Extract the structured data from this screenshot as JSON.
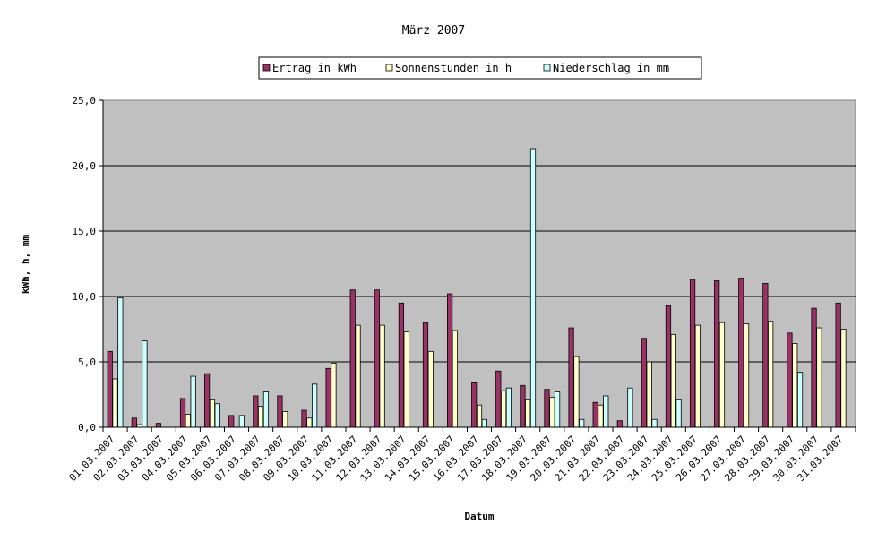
{
  "chart_data": {
    "type": "bar",
    "title": "März 2007",
    "xlabel": "Datum",
    "ylabel": "kWh, h, mm",
    "ylim": [
      0,
      25
    ],
    "yticks": [
      "0,0",
      "5,0",
      "10,0",
      "15,0",
      "20,0",
      "25,0"
    ],
    "grid": true,
    "legend_position": "top",
    "categories": [
      "01.03.2007",
      "02.03.2007",
      "03.03.2007",
      "04.03.2007",
      "05.03.2007",
      "06.03.2007",
      "07.03.2007",
      "08.03.2007",
      "09.03.2007",
      "10.03.2007",
      "11.03.2007",
      "12.03.2007",
      "13.03.2007",
      "14.03.2007",
      "15.03.2007",
      "16.03.2007",
      "17.03.2007",
      "18.03.2007",
      "19.03.2007",
      "20.03.2007",
      "21.03.2007",
      "22.03.2007",
      "23.03.2007",
      "24.03.2007",
      "25.03.2007",
      "26.03.2007",
      "27.03.2007",
      "28.03.2007",
      "29.03.2007",
      "30.03.2007",
      "31.03.2007"
    ],
    "series": [
      {
        "name": "Ertrag in kWh",
        "color": "#993366",
        "values": [
          5.8,
          0.7,
          0.3,
          2.2,
          4.1,
          0.9,
          2.4,
          2.4,
          1.3,
          4.5,
          10.5,
          10.5,
          9.5,
          8.0,
          10.2,
          3.4,
          4.3,
          3.2,
          2.9,
          7.6,
          1.9,
          0.5,
          6.8,
          9.3,
          11.3,
          11.2,
          11.4,
          11.0,
          7.2,
          9.1,
          9.5
        ]
      },
      {
        "name": "Sonnenstunden in h",
        "color": "#ffffcc",
        "values": [
          3.7,
          0.2,
          0.0,
          1.0,
          2.1,
          0.0,
          1.6,
          1.2,
          0.7,
          4.9,
          7.8,
          7.8,
          7.3,
          5.8,
          7.4,
          1.7,
          2.8,
          2.1,
          2.3,
          5.4,
          1.7,
          0.0,
          5.0,
          7.1,
          7.8,
          8.0,
          7.9,
          8.1,
          6.4,
          7.6,
          7.5
        ]
      },
      {
        "name": "Niederschlag in mm",
        "color": "#ccffff",
        "values": [
          9.9,
          6.6,
          0.0,
          3.9,
          1.8,
          0.9,
          2.7,
          0.0,
          3.3,
          0.0,
          0.0,
          0.0,
          0.0,
          0.0,
          0.0,
          0.6,
          3.0,
          21.3,
          2.7,
          0.6,
          2.4,
          3.0,
          0.6,
          2.1,
          0.0,
          0.0,
          0.0,
          0.0,
          4.2,
          0.0,
          0.0
        ]
      }
    ]
  }
}
